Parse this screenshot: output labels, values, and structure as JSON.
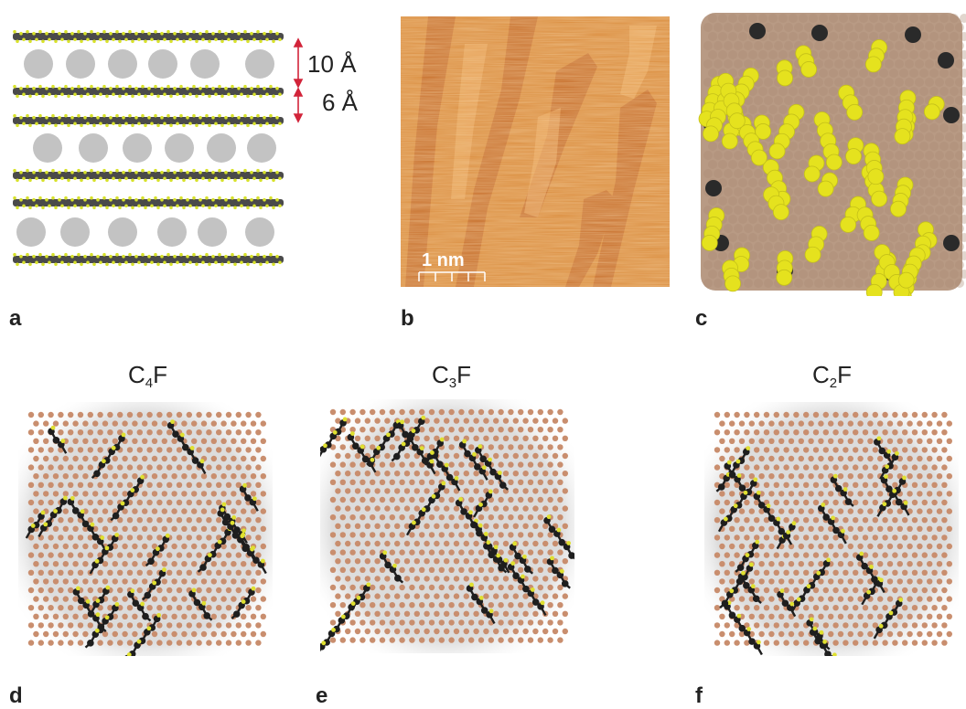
{
  "panels": {
    "a": {
      "letter": "a",
      "spacing_large": "10 Å",
      "spacing_small": "6 Å",
      "colors": {
        "carbon": "#4a4a4a",
        "fluorine": "#d8e22a",
        "intercalant": "#c3c3c3",
        "arrow": "#d2243a"
      }
    },
    "b": {
      "letter": "b",
      "scale_bar": "1 nm",
      "colors": {
        "background": "#d98a3a",
        "dark_band": "#b8561c",
        "light_band": "#f0b070"
      }
    },
    "c": {
      "letter": "c",
      "colors": {
        "carbon_surface": "#b89a84",
        "fluorine": "#e5e21e",
        "edge_carbon": "#2a2a2a"
      }
    },
    "d": {
      "letter": "d",
      "formula_main": "C",
      "formula_sub": "4",
      "formula_end": "F"
    },
    "e": {
      "letter": "e",
      "formula_main": "C",
      "formula_sub": "3",
      "formula_end": "F"
    },
    "f": {
      "letter": "f",
      "formula_main": "C",
      "formula_sub": "2",
      "formula_end": "F"
    }
  },
  "lattice_colors": {
    "carbon": "#c98e6e",
    "fluorinated_carbon": "#1e1e1e",
    "fluorine": "#dfe030",
    "haze": "#d7d7d7"
  }
}
